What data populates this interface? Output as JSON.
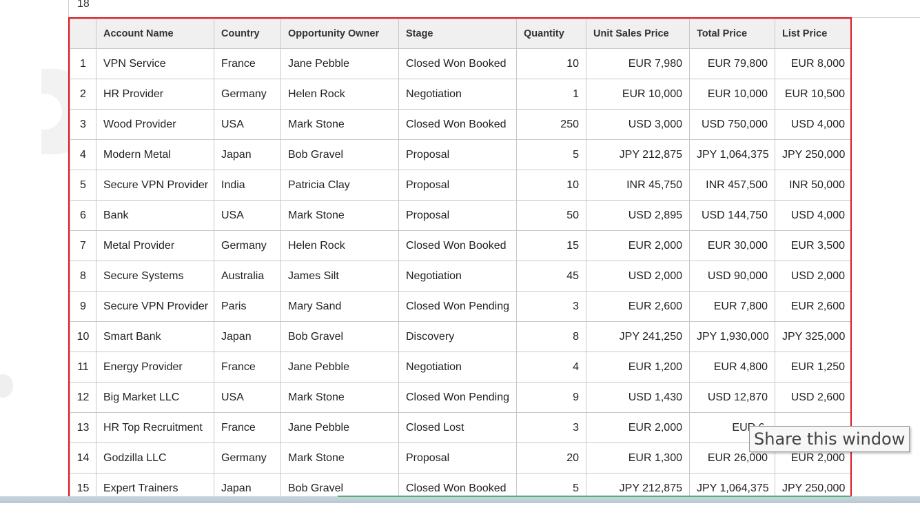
{
  "top_cell_value": "18",
  "table": {
    "headers": [
      "",
      "Account Name",
      "Country",
      "Opportunity Owner",
      "Stage",
      "Quantity",
      "Unit Sales Price",
      "Total Price",
      "List Price"
    ],
    "rows": [
      [
        "1",
        "VPN Service",
        "France",
        "Jane Pebble",
        "Closed Won Booked",
        "10",
        "EUR 7,980",
        "EUR 79,800",
        "EUR 8,000"
      ],
      [
        "2",
        "HR Provider",
        "Germany",
        "Helen Rock",
        "Negotiation",
        "1",
        "EUR 10,000",
        "EUR 10,000",
        "EUR 10,500"
      ],
      [
        "3",
        "Wood Provider",
        "USA",
        "Mark Stone",
        "Closed Won Booked",
        "250",
        "USD 3,000",
        "USD 750,000",
        "USD 4,000"
      ],
      [
        "4",
        "Modern Metal",
        "Japan",
        "Bob Gravel",
        "Proposal",
        "5",
        "JPY 212,875",
        "JPY 1,064,375",
        "JPY 250,000"
      ],
      [
        "5",
        "Secure VPN Provider",
        "India",
        "Patricia Clay",
        "Proposal",
        "10",
        "INR 45,750",
        "INR 457,500",
        "INR 50,000"
      ],
      [
        "6",
        "Bank",
        "USA",
        "Mark Stone",
        "Proposal",
        "50",
        "USD 2,895",
        "USD 144,750",
        "USD 4,000"
      ],
      [
        "7",
        "Metal Provider",
        "Germany",
        "Helen Rock",
        "Closed Won Booked",
        "15",
        "EUR 2,000",
        "EUR 30,000",
        "EUR 3,500"
      ],
      [
        "8",
        "Secure Systems",
        "Australia",
        "James Silt",
        "Negotiation",
        "45",
        "USD 2,000",
        "USD 90,000",
        "USD 2,000"
      ],
      [
        "9",
        "Secure VPN Provider",
        "Paris",
        "Mary Sand",
        "Closed Won Pending",
        "3",
        "EUR 2,600",
        "EUR 7,800",
        "EUR 2,600"
      ],
      [
        "10",
        "Smart Bank",
        "Japan",
        "Bob Gravel",
        "Discovery",
        "8",
        "JPY 241,250",
        "JPY 1,930,000",
        "JPY 325,000"
      ],
      [
        "11",
        "Energy Provider",
        "France",
        "Jane Pebble",
        "Negotiation",
        "4",
        "EUR 1,200",
        "EUR 4,800",
        "EUR 1,250"
      ],
      [
        "12",
        "Big Market LLC",
        "USA",
        "Mark Stone",
        "Closed Won Pending",
        "9",
        "USD 1,430",
        "USD 12,870",
        "USD 2,600"
      ],
      [
        "13",
        "HR Top Recruitment",
        "France",
        "Jane Pebble",
        "Closed Lost",
        "3",
        "EUR 2,000",
        "EUR 6,",
        ""
      ],
      [
        "14",
        "Godzilla LLC",
        "Germany",
        "Mark Stone",
        "Proposal",
        "20",
        "EUR 1,300",
        "EUR 26,000",
        "EUR 2,000"
      ],
      [
        "15",
        "Expert Trainers",
        "Japan",
        "Bob Gravel",
        "Closed Won Booked",
        "5",
        "JPY 212,875",
        "JPY 1,064,375",
        "JPY 250,000"
      ]
    ]
  },
  "tooltip": "Share this window",
  "colors": {
    "selection_border": "#e01a22",
    "header_bg": "#f0f0f0",
    "grid": "#c8c8c8",
    "accent_line": "#53b07a"
  }
}
